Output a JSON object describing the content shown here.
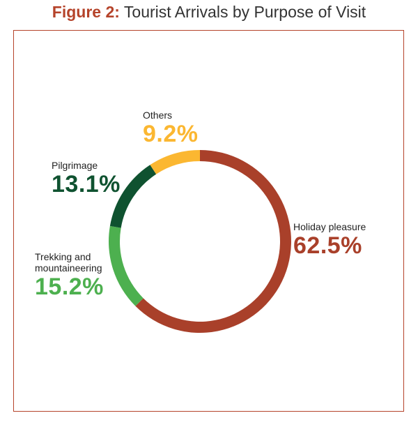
{
  "figure": {
    "prefix": "Figure 2:",
    "title": "Tourist Arrivals by Purpose of Visit"
  },
  "chart_data": {
    "type": "pie",
    "title": "Figure 2: Tourist Arrivals by Purpose of Visit",
    "donut": true,
    "slices": [
      {
        "name": "Holiday pleasure",
        "value": 62.5,
        "label": "62.5%",
        "color": "#a9402a"
      },
      {
        "name": "Trekking and",
        "name2": "mountaineering",
        "value": 15.2,
        "label": "15.2%",
        "color": "#4db04f"
      },
      {
        "name": "Pilgrimage",
        "value": 13.1,
        "label": "13.1%",
        "color": "#0f5230"
      },
      {
        "name": "Others",
        "value": 9.2,
        "label": "9.2%",
        "color": "#fbb731"
      }
    ]
  }
}
